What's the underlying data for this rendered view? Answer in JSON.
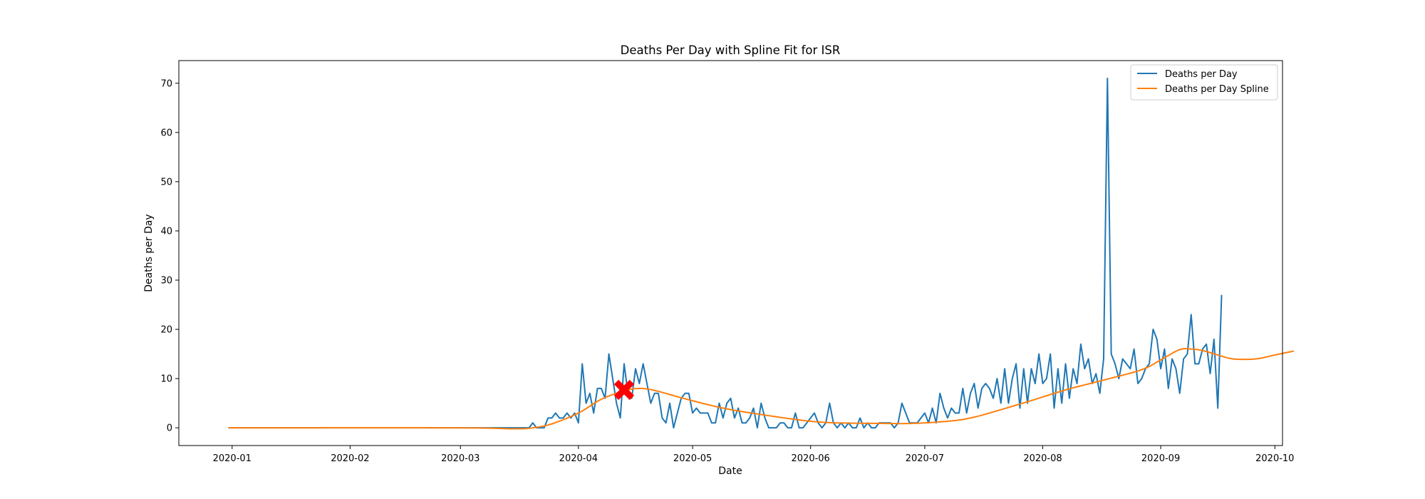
{
  "chart_data": {
    "type": "line",
    "title": "Deaths Per Day with Spline Fit for ISR",
    "xlabel": "Date",
    "ylabel": "Deaths per Day",
    "x_start": "2019-12-31",
    "x_end": "2020-09-19",
    "xlim": [
      "2019-12-18",
      "2020-10-03"
    ],
    "ylim": [
      -3.6,
      74.6
    ],
    "yticks": [
      0,
      10,
      20,
      30,
      40,
      50,
      60,
      70
    ],
    "xticks": [
      "2020-01",
      "2020-02",
      "2020-03",
      "2020-04",
      "2020-05",
      "2020-06",
      "2020-07",
      "2020-08",
      "2020-09",
      "2020-10"
    ],
    "legend_position": "top-right",
    "colors": {
      "deaths": "#1f77b4",
      "spline": "#ff7f0e",
      "marker": "#ff0000"
    },
    "series": [
      {
        "name": "Deaths per Day",
        "color": "#1f77b4",
        "values": [
          0,
          0,
          0,
          0,
          0,
          0,
          0,
          0,
          0,
          0,
          0,
          0,
          0,
          0,
          0,
          0,
          0,
          0,
          0,
          0,
          0,
          0,
          0,
          0,
          0,
          0,
          0,
          0,
          0,
          0,
          0,
          0,
          0,
          0,
          0,
          0,
          0,
          0,
          0,
          0,
          0,
          0,
          0,
          0,
          0,
          0,
          0,
          0,
          0,
          0,
          0,
          0,
          0,
          0,
          0,
          0,
          0,
          0,
          0,
          0,
          0,
          0,
          0,
          0,
          0,
          0,
          0,
          0,
          0,
          0,
          0,
          0,
          0,
          0,
          0,
          0,
          0,
          0,
          0,
          0,
          1,
          0,
          0,
          0,
          2,
          2,
          3,
          2,
          2,
          3,
          2,
          3,
          1,
          13,
          5,
          7,
          3,
          8,
          8,
          6,
          15,
          10,
          5,
          2,
          13,
          7,
          6,
          12,
          9,
          13,
          9,
          5,
          7,
          7,
          2,
          1,
          5,
          0,
          3,
          6,
          7,
          7,
          3,
          4,
          3,
          3,
          3,
          1,
          1,
          5,
          2,
          5,
          6,
          2,
          4,
          1,
          1,
          2,
          4,
          0,
          5,
          2,
          0,
          0,
          0,
          1,
          1,
          0,
          0,
          3,
          0,
          0,
          1,
          2,
          3,
          1,
          0,
          1,
          5,
          1,
          0,
          1,
          0,
          1,
          0,
          0,
          2,
          0,
          1,
          0,
          0,
          1,
          1,
          1,
          1,
          0,
          1,
          5,
          3,
          1,
          1,
          1,
          2,
          3,
          1,
          4,
          1,
          7,
          4,
          2,
          4,
          3,
          3,
          8,
          3,
          7,
          9,
          4,
          8,
          9,
          8,
          6,
          10,
          5,
          12,
          5,
          10,
          13,
          4,
          12,
          5,
          12,
          9,
          15,
          9,
          10,
          15,
          4,
          12,
          5,
          13,
          6,
          12,
          9,
          17,
          12,
          14,
          9,
          11,
          7,
          14,
          71,
          15,
          13,
          10,
          14,
          13,
          12,
          16,
          9,
          10,
          12,
          13,
          20,
          18,
          12,
          16,
          8,
          14,
          12,
          7,
          14,
          15,
          23,
          13,
          13,
          16,
          17,
          11,
          18,
          4,
          27
        ]
      },
      {
        "name": "Deaths per Day Spline",
        "color": "#ff7f0e",
        "knots": [
          [
            0,
            0
          ],
          [
            60,
            0
          ],
          [
            75,
            -0.2
          ],
          [
            80,
            0
          ],
          [
            85,
            0.8
          ],
          [
            92,
            3
          ],
          [
            98,
            5.8
          ],
          [
            104,
            7.5
          ],
          [
            108,
            8
          ],
          [
            112,
            7.6
          ],
          [
            120,
            5.9
          ],
          [
            130,
            4
          ],
          [
            140,
            2.7
          ],
          [
            150,
            1.6
          ],
          [
            155,
            1.2
          ],
          [
            160,
            1
          ],
          [
            170,
            0.9
          ],
          [
            180,
            0.9
          ],
          [
            190,
            1.4
          ],
          [
            195,
            2
          ],
          [
            200,
            3
          ],
          [
            210,
            5.3
          ],
          [
            220,
            7.7
          ],
          [
            230,
            9.7
          ],
          [
            240,
            11.8
          ],
          [
            245,
            13.8
          ],
          [
            250,
            15.9
          ],
          [
            253,
            16
          ],
          [
            256,
            15.7
          ],
          [
            260,
            14.8
          ],
          [
            264,
            14
          ],
          [
            270,
            14
          ],
          [
            275,
            14.8
          ],
          [
            280,
            15.6
          ]
        ]
      }
    ],
    "annotations": [
      {
        "type": "x-marker",
        "date": "2020-04-13",
        "y": 7.7,
        "color": "#ff0000"
      }
    ]
  }
}
